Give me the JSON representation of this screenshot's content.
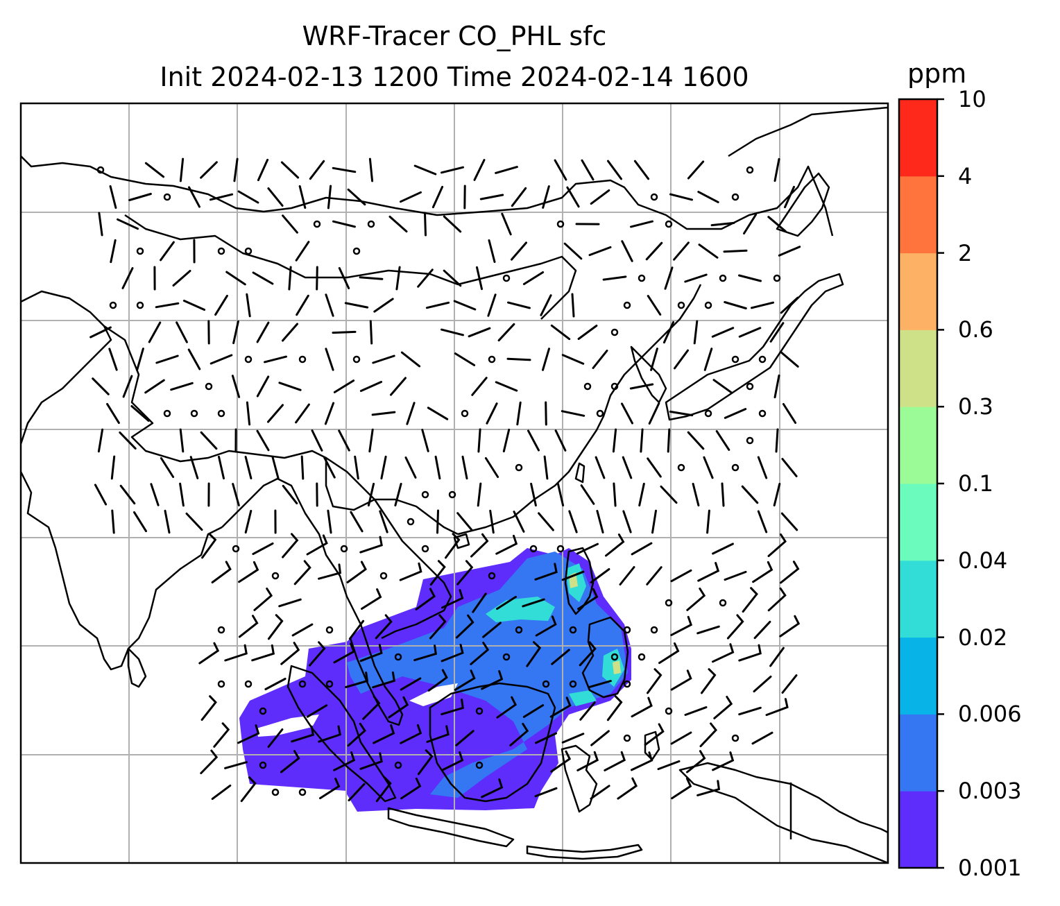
{
  "title": {
    "line1": "WRF-Tracer CO_PHL sfc",
    "line2": "Init 2024-02-13 1200 Time 2024-02-14 1600"
  },
  "colorbar": {
    "unit": "ppm",
    "levels": [
      "0.001",
      "0.003",
      "0.006",
      "0.02",
      "0.04",
      "0.1",
      "0.3",
      "0.6",
      "2",
      "4",
      "10"
    ],
    "colors": [
      "#5e2cfb",
      "#3576f3",
      "#08b3e8",
      "#33ddd7",
      "#6bfcbd",
      "#9bfb97",
      "#cfe188",
      "#fdb165",
      "#ff733c",
      "#fe291b"
    ]
  },
  "map": {
    "region": "East and Southeast Asia",
    "plume_colors": {
      "low": "#5e2cfb",
      "mid": "#3576f3",
      "high": "#33ddd7",
      "peak": "#cfe188"
    },
    "grid_color": "#b0b0b0",
    "wind_barbs": "black"
  }
}
